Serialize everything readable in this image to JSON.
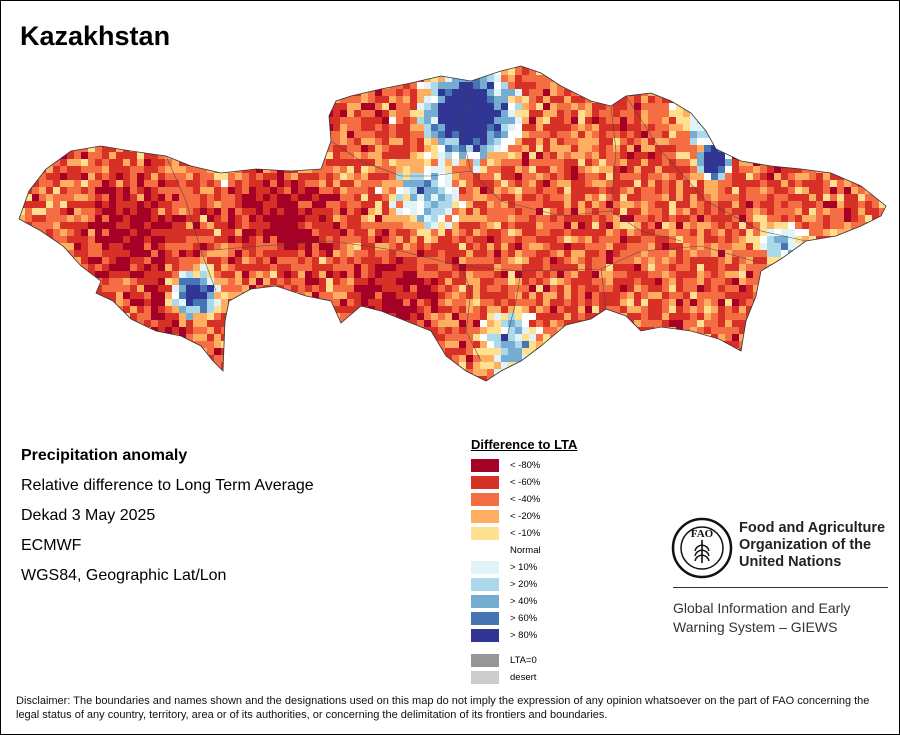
{
  "title": "Kazakhstan",
  "info": {
    "heading": "Precipitation anomaly",
    "line1": "Relative difference to Long Term Average",
    "line2": "Dekad 3 May 2025",
    "line3": "ECMWF",
    "line4": "WGS84, Geographic Lat/Lon"
  },
  "legend": {
    "heading": "Difference to LTA",
    "items": [
      {
        "label": "< -80%",
        "color": "#a50026"
      },
      {
        "label": "< -60%",
        "color": "#d73027"
      },
      {
        "label": "< -40%",
        "color": "#f46d43"
      },
      {
        "label": "< -20%",
        "color": "#fdae61"
      },
      {
        "label": "< -10%",
        "color": "#fee090"
      },
      {
        "label": "Normal",
        "color": ""
      },
      {
        "label": "> 10%",
        "color": "#e0f3f8"
      },
      {
        "label": "> 20%",
        "color": "#abd9e9"
      },
      {
        "label": "> 40%",
        "color": "#74add1"
      },
      {
        "label": "> 60%",
        "color": "#4575b4"
      },
      {
        "label": "> 80%",
        "color": "#313695"
      }
    ],
    "extra": [
      {
        "label": "LTA=0",
        "color": "#969696"
      },
      {
        "label": "desert",
        "color": "#cccccc"
      }
    ]
  },
  "org": {
    "name_line1": "Food and Agriculture",
    "name_line2": "Organization of the",
    "name_line3": "United Nations",
    "system_line1": "Global Information and Early",
    "system_line2": "Warning System – GIEWS"
  },
  "disclaimer": "Disclaimer: The boundaries and names shown and the designations used on this map do not imply the expression of any opinion whatsoever on the part of FAO concerning the legal status of any country, territory, area or of its authorities, or concerning the delimitation of its frontiers and boundaries."
}
